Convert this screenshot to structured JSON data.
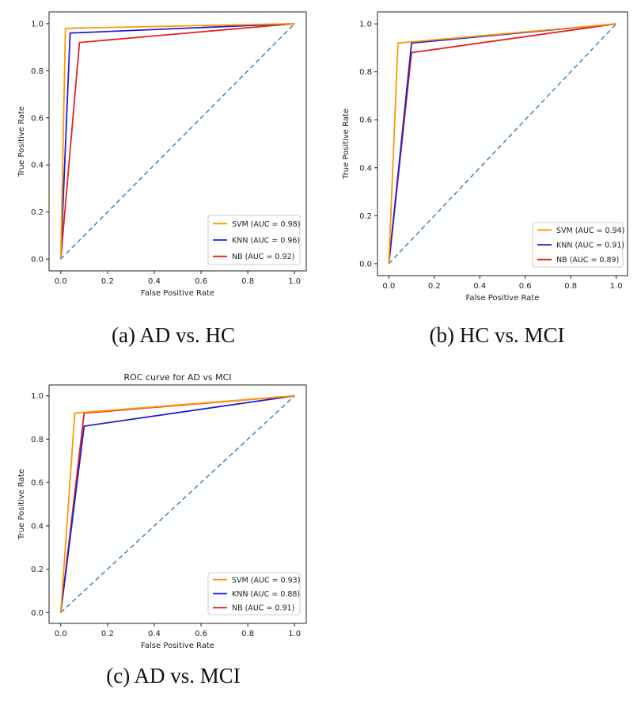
{
  "chart_data": [
    {
      "type": "line",
      "caption": "(a) AD vs. HC",
      "title": "",
      "xlabel": "False Positive Rate",
      "ylabel": "True Positive Rate",
      "xlim": [
        -0.05,
        1.05
      ],
      "ylim": [
        -0.05,
        1.05
      ],
      "x_ticks": [
        "0.0",
        "0.2",
        "0.4",
        "0.6",
        "0.8",
        "1.0"
      ],
      "y_ticks": [
        "0.0",
        "0.2",
        "0.4",
        "0.6",
        "0.8",
        "1.0"
      ],
      "legend_position": "lower-right",
      "series": [
        {
          "name": "SVM (AUC =  0.98)",
          "color": "#ff9800",
          "x": [
            0,
            0.02,
            1
          ],
          "y": [
            0,
            0.98,
            1
          ]
        },
        {
          "name": "KNN (AUC =  0.96)",
          "color": "#1f1fd6",
          "x": [
            0,
            0.04,
            1
          ],
          "y": [
            0,
            0.96,
            1
          ]
        },
        {
          "name": "NB (AUC =  0.92)",
          "color": "#e62222",
          "x": [
            0,
            0.08,
            1
          ],
          "y": [
            0,
            0.92,
            1
          ]
        }
      ],
      "diagonal": {
        "color": "#3b86c4",
        "x": [
          0,
          1
        ],
        "y": [
          0,
          1
        ]
      }
    },
    {
      "type": "line",
      "caption": "(b) HC vs. MCI",
      "title": "",
      "xlabel": "False Positive Rate",
      "ylabel": "True Positive Rate",
      "xlim": [
        -0.05,
        1.05
      ],
      "ylim": [
        -0.05,
        1.05
      ],
      "x_ticks": [
        "0.0",
        "0.2",
        "0.4",
        "0.6",
        "0.8",
        "1.0"
      ],
      "y_ticks": [
        "0.0",
        "0.2",
        "0.4",
        "0.6",
        "0.8",
        "1.0"
      ],
      "legend_position": "lower-right",
      "series": [
        {
          "name": "SVM (AUC =  0.94)",
          "color": "#ff9800",
          "x": [
            0,
            0.04,
            1
          ],
          "y": [
            0,
            0.92,
            1
          ]
        },
        {
          "name": "KNN (AUC =  0.91)",
          "color": "#1f1fd6",
          "x": [
            0,
            0.1,
            1
          ],
          "y": [
            0,
            0.92,
            1
          ]
        },
        {
          "name": "NB (AUC =  0.89)",
          "color": "#e62222",
          "x": [
            0,
            0.1,
            1
          ],
          "y": [
            0,
            0.88,
            1
          ]
        }
      ],
      "diagonal": {
        "color": "#3b86c4",
        "x": [
          0,
          1
        ],
        "y": [
          0,
          1
        ]
      }
    },
    {
      "type": "line",
      "caption": "(c) AD vs. MCI",
      "title": "ROC curve for AD vs MCI",
      "xlabel": "False Positive Rate",
      "ylabel": "True Positive Rate",
      "xlim": [
        -0.05,
        1.05
      ],
      "ylim": [
        -0.05,
        1.05
      ],
      "x_ticks": [
        "0.0",
        "0.2",
        "0.4",
        "0.6",
        "0.8",
        "1.0"
      ],
      "y_ticks": [
        "0.0",
        "0.2",
        "0.4",
        "0.6",
        "0.8",
        "1.0"
      ],
      "legend_position": "lower-right",
      "series": [
        {
          "name": "SVM (AUC =  0.93)",
          "color": "#ff9800",
          "x": [
            0,
            0.06,
            1
          ],
          "y": [
            0,
            0.92,
            1
          ]
        },
        {
          "name": "KNN (AUC =  0.88)",
          "color": "#1f1fd6",
          "x": [
            0,
            0.1,
            1
          ],
          "y": [
            0,
            0.86,
            1
          ]
        },
        {
          "name": "NB (AUC =  0.91)",
          "color": "#e62222",
          "x": [
            0,
            0.1,
            1
          ],
          "y": [
            0,
            0.92,
            1
          ]
        }
      ],
      "diagonal": {
        "color": "#3b86c4",
        "x": [
          0,
          1
        ],
        "y": [
          0,
          1
        ]
      }
    }
  ]
}
